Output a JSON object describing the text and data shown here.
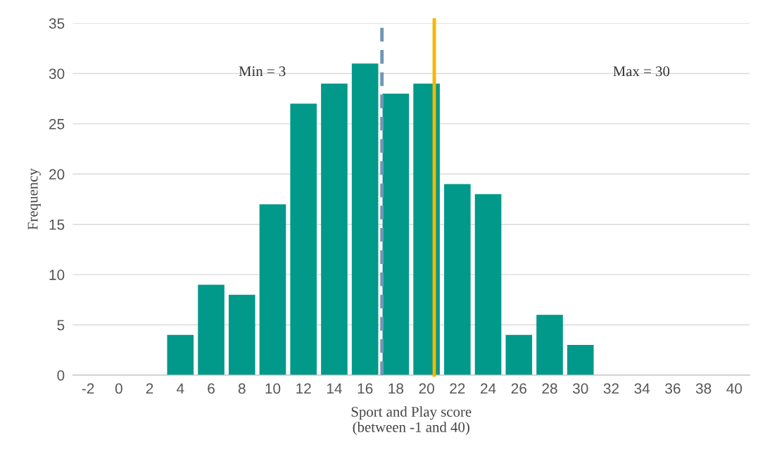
{
  "chart_data": {
    "type": "bar",
    "x": [
      -2,
      0,
      2,
      4,
      6,
      8,
      10,
      12,
      14,
      16,
      18,
      20,
      22,
      24,
      26,
      28,
      30,
      32,
      34,
      36,
      38,
      40
    ],
    "values": [
      0,
      0,
      0,
      4,
      9,
      8,
      17,
      27,
      29,
      31,
      28,
      29,
      19,
      18,
      4,
      6,
      3,
      0,
      0,
      0,
      0,
      0
    ],
    "color": "#00998a",
    "xlabel": "Sport and Play score\n(between -1 and 40)",
    "ylabel": "Frequency",
    "xlim": [
      -3,
      41
    ],
    "xticks": [
      -2,
      0,
      2,
      4,
      6,
      8,
      10,
      12,
      14,
      16,
      18,
      20,
      22,
      24,
      26,
      28,
      30,
      32,
      34,
      36,
      38,
      40
    ],
    "ylim": [
      0,
      35
    ],
    "yticks": [
      0,
      5,
      10,
      15,
      20,
      25,
      30,
      35
    ],
    "grid": "y",
    "legend": false,
    "ref_lines": [
      {
        "axis": "x",
        "value": 17.1,
        "color": "#6f97b3",
        "line_style": "dashed"
      },
      {
        "axis": "x",
        "value": 20.5,
        "color": "#f5b800",
        "line_style": "solid"
      }
    ],
    "annotations": [
      "Min = 3",
      "Max = 30"
    ]
  }
}
